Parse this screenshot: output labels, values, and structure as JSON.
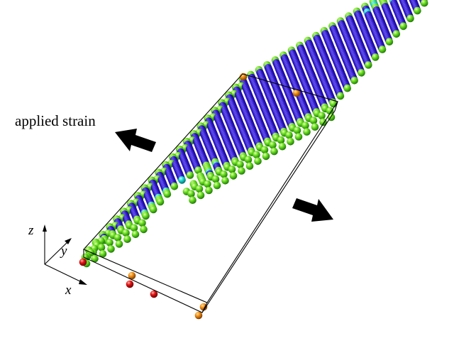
{
  "annotation": {
    "applied_strain": "applied strain"
  },
  "axes": {
    "x": "x",
    "y": "y",
    "z": "z"
  },
  "colors": {
    "bulk_atoms": "#2a12c8",
    "surface_atoms": "#66dd1e",
    "step_atoms": "#19d6cf",
    "defect_atoms_red": "#e01010",
    "defect_atoms_orange": "#f08a10",
    "arrows": "#000000",
    "cell_box": "#000000"
  },
  "icons": {
    "strain_arrows": "block-arrow-icon",
    "axis_triad": "xyz-axes-icon"
  }
}
